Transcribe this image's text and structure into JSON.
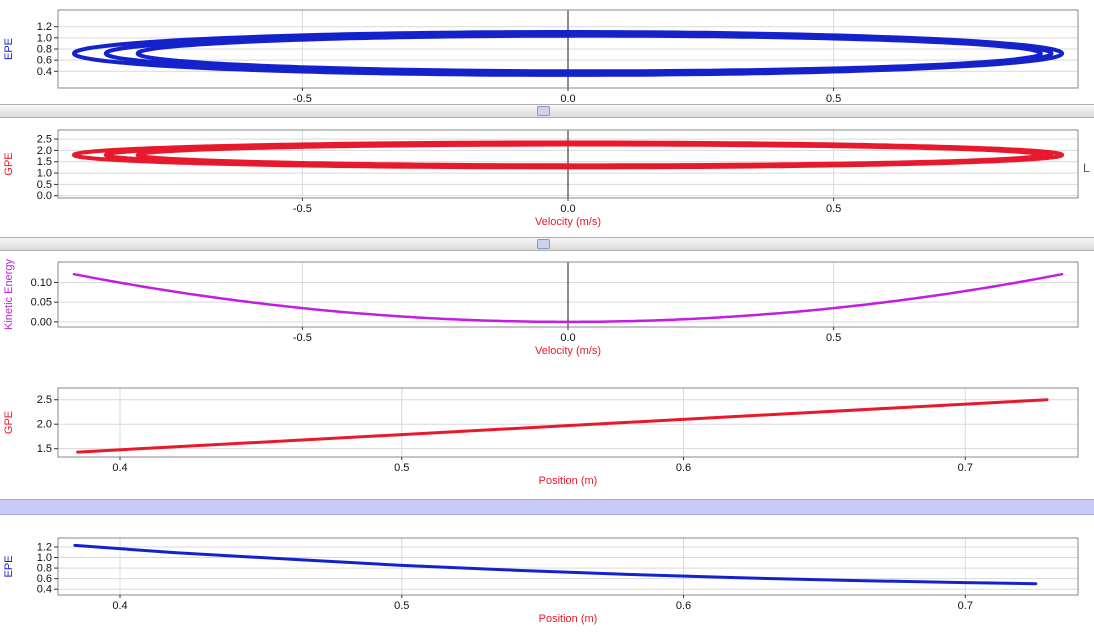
{
  "right_edge_label": "L",
  "colors": {
    "blue": "#1522cc",
    "red": "#e8192c",
    "magenta": "#c21ee0",
    "cursor": "#5a5a5a",
    "grid": "#d9d9d9",
    "border": "#8a8a8a",
    "tick_text": "#111111",
    "scroll_thumb": "#ccd3ec",
    "band": "#cacaf8"
  },
  "chart_data": [
    {
      "id": "epe-vs-velocity",
      "type": "line",
      "title": "",
      "ylabel": "EPE",
      "ylabel_color": "#1522cc",
      "xlabel": "",
      "xlabel_color": "#e8192c",
      "xlim": [
        -0.96,
        0.96
      ],
      "ylim": [
        0.1,
        1.5
      ],
      "x_ticks": [
        -0.5,
        0.0,
        0.5
      ],
      "x_tick_labels": [
        "-0.5",
        "0.0",
        "0.5"
      ],
      "y_ticks": [
        0.4,
        0.6,
        0.8,
        1.0,
        1.2
      ],
      "y_tick_labels": [
        "0.4",
        "0.6",
        "0.8",
        "1.0",
        "1.2"
      ],
      "grid": true,
      "cursor_x": 0.0,
      "series": [
        {
          "name": "EPE phase loops",
          "color": "#1522cc",
          "width": 4,
          "shape": "loops",
          "loops": [
            {
              "cx": 0.0,
              "cy": 0.72,
              "rx": 0.93,
              "ry": 0.385
            },
            {
              "cx": 0.02,
              "cy": 0.72,
              "rx": 0.89,
              "ry": 0.35
            },
            {
              "cx": 0.04,
              "cy": 0.72,
              "rx": 0.85,
              "ry": 0.32
            }
          ]
        }
      ]
    },
    {
      "id": "gpe-vs-velocity",
      "type": "line",
      "title": "",
      "ylabel": "GPE",
      "ylabel_color": "#e8192c",
      "xlabel": "Velocity (m/s)",
      "xlabel_color": "#e8192c",
      "xlim": [
        -0.96,
        0.96
      ],
      "ylim": [
        -0.1,
        2.9
      ],
      "x_ticks": [
        -0.5,
        0.0,
        0.5
      ],
      "x_tick_labels": [
        "-0.5",
        "0.0",
        "0.5"
      ],
      "y_ticks": [
        0.0,
        0.5,
        1.0,
        1.5,
        2.0,
        2.5
      ],
      "y_tick_labels": [
        "0.0",
        "0.5",
        "1.0",
        "1.5",
        "2.0",
        "2.5"
      ],
      "grid": true,
      "cursor_x": 0.0,
      "series": [
        {
          "name": "GPE phase loops",
          "color": "#e8192c",
          "width": 4,
          "shape": "loops",
          "loops": [
            {
              "cx": 0.0,
              "cy": 1.8,
              "rx": 0.93,
              "ry": 0.55
            },
            {
              "cx": 0.02,
              "cy": 1.8,
              "rx": 0.89,
              "ry": 0.5
            },
            {
              "cx": 0.04,
              "cy": 1.8,
              "rx": 0.85,
              "ry": 0.46
            }
          ]
        }
      ]
    },
    {
      "id": "kinetic-energy-vs-velocity",
      "type": "line",
      "title": "",
      "ylabel": "Kinetic Energy",
      "ylabel_color": "#c21ee0",
      "xlabel": "Velocity (m/s)",
      "xlabel_color": "#e8192c",
      "xlim": [
        -0.96,
        0.96
      ],
      "ylim": [
        -0.013,
        0.152
      ],
      "x_ticks": [
        -0.5,
        0.0,
        0.5
      ],
      "x_tick_labels": [
        "-0.5",
        "0.0",
        "0.5"
      ],
      "y_ticks": [
        0.0,
        0.05,
        0.1
      ],
      "y_tick_labels": [
        "0.00",
        "0.05",
        "0.10"
      ],
      "grid": true,
      "cursor_x": 0.0,
      "series": [
        {
          "name": "Kinetic energy parabola",
          "color": "#c21ee0",
          "width": 2.5,
          "shape": "parabola",
          "a": 0.14,
          "vertex_x": 0.0,
          "x_start": -0.93,
          "x_end": 0.93
        }
      ]
    },
    {
      "id": "gpe-vs-position",
      "type": "line",
      "title": "",
      "ylabel": "GPE",
      "ylabel_color": "#e8192c",
      "xlabel": "Position (m)",
      "xlabel_color": "#e8192c",
      "xlim": [
        0.378,
        0.74
      ],
      "ylim": [
        1.33,
        2.74
      ],
      "x_ticks": [
        0.4,
        0.5,
        0.6,
        0.7
      ],
      "x_tick_labels": [
        "0.4",
        "0.5",
        "0.6",
        "0.7"
      ],
      "y_ticks": [
        1.5,
        2.0,
        2.5
      ],
      "y_tick_labels": [
        "1.5",
        "2.0",
        "2.5"
      ],
      "grid": true,
      "cursor_x": null,
      "series": [
        {
          "name": "GPE vs position line",
          "color": "#e8192c",
          "width": 3,
          "shape": "points",
          "points": [
            [
              0.385,
              1.43
            ],
            [
              0.729,
              2.5
            ]
          ]
        }
      ]
    },
    {
      "id": "epe-vs-position",
      "type": "line",
      "title": "",
      "ylabel": "EPE",
      "ylabel_color": "#1522cc",
      "xlabel": "Position (m)",
      "xlabel_color": "#e8192c",
      "xlim": [
        0.378,
        0.74
      ],
      "ylim": [
        0.29,
        1.37
      ],
      "x_ticks": [
        0.4,
        0.5,
        0.6,
        0.7
      ],
      "x_tick_labels": [
        "0.4",
        "0.5",
        "0.6",
        "0.7"
      ],
      "y_ticks": [
        0.4,
        0.6,
        0.8,
        1.0,
        1.2
      ],
      "y_tick_labels": [
        "0.4",
        "0.6",
        "0.8",
        "1.0",
        "1.2"
      ],
      "grid": true,
      "cursor_x": null,
      "series": [
        {
          "name": "EPE vs position curve",
          "color": "#1522cc",
          "width": 3,
          "shape": "points",
          "points": [
            [
              0.384,
              1.23
            ],
            [
              0.42,
              1.09
            ],
            [
              0.46,
              0.97
            ],
            [
              0.5,
              0.85
            ],
            [
              0.54,
              0.76
            ],
            [
              0.58,
              0.68
            ],
            [
              0.62,
              0.615
            ],
            [
              0.66,
              0.565
            ],
            [
              0.7,
              0.525
            ],
            [
              0.725,
              0.505
            ]
          ]
        }
      ]
    }
  ]
}
